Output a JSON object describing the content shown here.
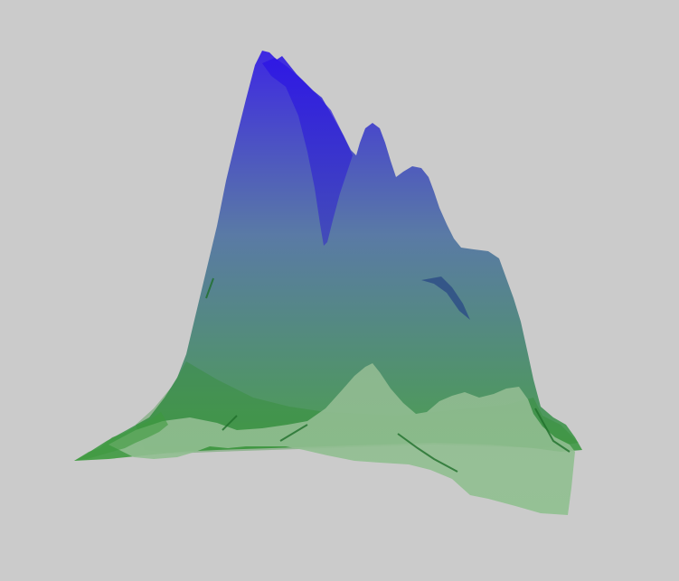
{
  "scene": {
    "background_color": "#cbcbcb",
    "surface_top_color": "#2a12e6",
    "surface_mid_color": "#4a6fa0",
    "surface_bottom_color": "#3a9a3a",
    "foreground_ridge_color": "#8fc08f",
    "icon": "terrain-surface-icon"
  }
}
